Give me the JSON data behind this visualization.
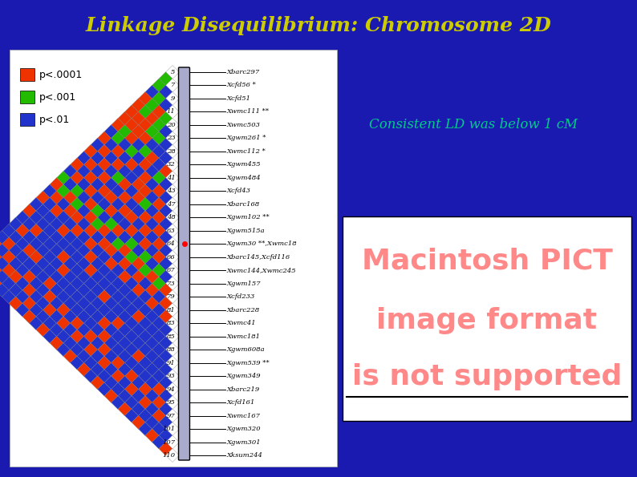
{
  "title": "Linkage Disequilibrium: Chromosome 2D",
  "title_color": "#CCCC00",
  "background_color": "#1A1AB0",
  "left_panel_bg": "#FFFFFF",
  "consistent_text": "Consistent LD was below 1 cM",
  "consistent_text_color": "#00CC88",
  "pict_lines": [
    "Macintosh PICT",
    "image format",
    "is not supported"
  ],
  "pict_color": "#FF8888",
  "legend_labels": [
    "p<.0001",
    "p<.001",
    "p<.01"
  ],
  "legend_colors": [
    "#EE3300",
    "#22BB00",
    "#2233CC"
  ],
  "marker_positions": [
    5,
    7,
    9,
    11,
    20,
    23,
    28,
    32,
    41,
    43,
    47,
    48,
    63,
    64,
    66,
    67,
    73,
    79,
    81,
    83,
    85,
    88,
    91,
    93,
    94,
    95,
    97,
    101,
    107,
    110
  ],
  "marker_names": [
    "Xbarc297",
    "Xcfd56 *",
    "Xcfd51",
    "Xwmc111 **",
    "Xwmc503",
    "Xgwm261 *",
    "Xwmc112 *",
    "Xgwm455",
    "Xgwm484",
    "Xcfd43",
    "Xbarc168",
    "Xgwm102 **",
    "Xgwm515a",
    "Xgwm30 **,Xwmc18",
    "Xbarc145,Xcfd116",
    "Xwmc144,Xwmc245",
    "Xgwm157",
    "Xcfd233",
    "Xbarc228",
    "Xwmc41",
    "Xwmc181",
    "Xgwm608a",
    "Xgwm539 **",
    "Xgwm349",
    "Xbarc219",
    "Xcfd161",
    "Xwmc167",
    "Xgwm320",
    "Xgwm301",
    "Xksum244"
  ],
  "underlined_markers": [
    13,
    14
  ],
  "ld_matrix_colors": [
    [
      0,
      0,
      0,
      0,
      0,
      0,
      0,
      0,
      0,
      0,
      0,
      0,
      0,
      0,
      0,
      0,
      0,
      0,
      0,
      0,
      0,
      0,
      0,
      0,
      0,
      0,
      0,
      0,
      0,
      0
    ],
    [
      2,
      0,
      0,
      0,
      0,
      0,
      0,
      0,
      0,
      0,
      0,
      0,
      0,
      0,
      0,
      0,
      0,
      0,
      0,
      0,
      0,
      0,
      0,
      0,
      0,
      0,
      0,
      0,
      0,
      0
    ],
    [
      2,
      1,
      0,
      0,
      0,
      0,
      0,
      0,
      0,
      0,
      0,
      0,
      0,
      0,
      0,
      0,
      0,
      0,
      0,
      0,
      0,
      0,
      0,
      0,
      0,
      0,
      0,
      0,
      0,
      0
    ],
    [
      1,
      2,
      1,
      0,
      0,
      0,
      0,
      0,
      0,
      0,
      0,
      0,
      0,
      0,
      0,
      0,
      0,
      0,
      0,
      0,
      0,
      0,
      0,
      0,
      0,
      0,
      0,
      0,
      0,
      0
    ],
    [
      3,
      2,
      3,
      2,
      0,
      0,
      0,
      0,
      0,
      0,
      0,
      0,
      0,
      0,
      0,
      0,
      0,
      0,
      0,
      0,
      0,
      0,
      0,
      0,
      0,
      0,
      0,
      0,
      0,
      0
    ],
    [
      3,
      2,
      3,
      2,
      1,
      0,
      0,
      0,
      0,
      0,
      0,
      0,
      0,
      0,
      0,
      0,
      0,
      0,
      0,
      0,
      0,
      0,
      0,
      0,
      0,
      0,
      0,
      0,
      0,
      0
    ],
    [
      3,
      3,
      3,
      2,
      2,
      1,
      0,
      0,
      0,
      0,
      0,
      0,
      0,
      0,
      0,
      0,
      0,
      0,
      0,
      0,
      0,
      0,
      0,
      0,
      0,
      0,
      0,
      0,
      0,
      0
    ],
    [
      3,
      3,
      3,
      3,
      1,
      1,
      1,
      0,
      0,
      0,
      0,
      0,
      0,
      0,
      0,
      0,
      0,
      0,
      0,
      0,
      0,
      0,
      0,
      0,
      0,
      0,
      0,
      0,
      0,
      0
    ],
    [
      3,
      2,
      3,
      1,
      2,
      3,
      1,
      3,
      0,
      0,
      0,
      0,
      0,
      0,
      0,
      0,
      0,
      0,
      0,
      0,
      0,
      0,
      0,
      0,
      0,
      0,
      0,
      0,
      0,
      0
    ],
    [
      1,
      2,
      1,
      2,
      1,
      3,
      1,
      2,
      1,
      0,
      0,
      0,
      0,
      0,
      0,
      0,
      0,
      0,
      0,
      0,
      0,
      0,
      0,
      0,
      0,
      0,
      0,
      0,
      0,
      0
    ],
    [
      3,
      1,
      3,
      1,
      3,
      1,
      3,
      1,
      3,
      1,
      0,
      0,
      0,
      0,
      0,
      0,
      0,
      0,
      0,
      0,
      0,
      0,
      0,
      0,
      0,
      0,
      0,
      0,
      0,
      0
    ],
    [
      1,
      3,
      1,
      3,
      1,
      1,
      3,
      3,
      1,
      3,
      1,
      0,
      0,
      0,
      0,
      0,
      0,
      0,
      0,
      0,
      0,
      0,
      0,
      0,
      0,
      0,
      0,
      0,
      0,
      0
    ],
    [
      3,
      1,
      3,
      1,
      2,
      3,
      1,
      3,
      2,
      1,
      3,
      1,
      0,
      0,
      0,
      0,
      0,
      0,
      0,
      0,
      0,
      0,
      0,
      0,
      0,
      0,
      0,
      0,
      0,
      0
    ],
    [
      1,
      3,
      1,
      3,
      1,
      1,
      3,
      1,
      1,
      3,
      1,
      3,
      1,
      0,
      0,
      0,
      0,
      0,
      0,
      0,
      0,
      0,
      0,
      0,
      0,
      0,
      0,
      0,
      0,
      0
    ],
    [
      3,
      1,
      3,
      1,
      3,
      3,
      1,
      3,
      3,
      1,
      3,
      1,
      3,
      1,
      0,
      0,
      0,
      0,
      0,
      0,
      0,
      0,
      0,
      0,
      0,
      0,
      0,
      0,
      0,
      0
    ],
    [
      1,
      3,
      1,
      3,
      1,
      1,
      3,
      1,
      1,
      3,
      1,
      3,
      1,
      3,
      1,
      0,
      0,
      0,
      0,
      0,
      0,
      0,
      0,
      0,
      0,
      0,
      0,
      0,
      0,
      0
    ],
    [
      2,
      1,
      2,
      1,
      3,
      2,
      1,
      2,
      3,
      1,
      2,
      1,
      2,
      1,
      2,
      1,
      0,
      0,
      0,
      0,
      0,
      0,
      0,
      0,
      0,
      0,
      0,
      0,
      0,
      0
    ],
    [
      3,
      2,
      3,
      2,
      1,
      3,
      2,
      3,
      1,
      2,
      3,
      2,
      3,
      2,
      3,
      2,
      3,
      0,
      0,
      0,
      0,
      0,
      0,
      0,
      0,
      0,
      0,
      0,
      0,
      0
    ],
    [
      1,
      3,
      1,
      3,
      3,
      1,
      3,
      1,
      3,
      3,
      1,
      3,
      1,
      3,
      1,
      3,
      1,
      3,
      0,
      0,
      0,
      0,
      0,
      0,
      0,
      0,
      0,
      0,
      0,
      0
    ],
    [
      3,
      1,
      3,
      1,
      1,
      3,
      1,
      3,
      1,
      1,
      3,
      1,
      3,
      1,
      3,
      1,
      3,
      1,
      3,
      0,
      0,
      0,
      0,
      0,
      0,
      0,
      0,
      0,
      0,
      0
    ],
    [
      1,
      1,
      1,
      1,
      3,
      1,
      1,
      1,
      3,
      1,
      1,
      1,
      1,
      1,
      1,
      1,
      1,
      1,
      1,
      1,
      0,
      0,
      0,
      0,
      0,
      0,
      0,
      0,
      0,
      0
    ],
    [
      3,
      1,
      1,
      1,
      1,
      1,
      1,
      1,
      1,
      3,
      1,
      1,
      1,
      1,
      1,
      1,
      3,
      1,
      1,
      1,
      1,
      0,
      0,
      0,
      0,
      0,
      0,
      0,
      0,
      0
    ],
    [
      1,
      1,
      3,
      1,
      1,
      1,
      3,
      1,
      1,
      1,
      1,
      1,
      3,
      1,
      1,
      1,
      1,
      1,
      1,
      1,
      1,
      1,
      0,
      0,
      0,
      0,
      0,
      0,
      0,
      0
    ],
    [
      1,
      3,
      1,
      1,
      1,
      1,
      1,
      3,
      1,
      1,
      1,
      1,
      1,
      1,
      1,
      3,
      1,
      1,
      1,
      1,
      1,
      1,
      1,
      0,
      0,
      0,
      0,
      0,
      0,
      0
    ],
    [
      1,
      1,
      1,
      3,
      3,
      1,
      1,
      1,
      1,
      1,
      1,
      1,
      1,
      1,
      3,
      1,
      1,
      1,
      1,
      3,
      1,
      1,
      1,
      1,
      0,
      0,
      0,
      0,
      0,
      0
    ],
    [
      1,
      3,
      1,
      1,
      1,
      1,
      1,
      3,
      1,
      1,
      1,
      1,
      1,
      1,
      1,
      3,
      1,
      1,
      1,
      1,
      1,
      1,
      1,
      3,
      1,
      0,
      0,
      0,
      0,
      0
    ],
    [
      3,
      1,
      3,
      1,
      1,
      3,
      1,
      1,
      3,
      1,
      3,
      1,
      3,
      1,
      3,
      1,
      3,
      1,
      3,
      1,
      3,
      1,
      3,
      1,
      3,
      1,
      0,
      0,
      0,
      0
    ],
    [
      1,
      3,
      1,
      3,
      3,
      1,
      3,
      1,
      1,
      3,
      1,
      3,
      1,
      3,
      1,
      3,
      1,
      3,
      1,
      3,
      1,
      3,
      1,
      3,
      1,
      3,
      1,
      0,
      0,
      0
    ],
    [
      1,
      1,
      3,
      1,
      1,
      1,
      1,
      3,
      1,
      1,
      1,
      1,
      1,
      1,
      1,
      1,
      1,
      1,
      1,
      1,
      1,
      1,
      1,
      1,
      1,
      1,
      1,
      1,
      0,
      0
    ],
    [
      1,
      3,
      1,
      3,
      1,
      1,
      3,
      1,
      3,
      1,
      3,
      1,
      3,
      1,
      3,
      1,
      3,
      1,
      3,
      1,
      3,
      1,
      3,
      1,
      3,
      1,
      3,
      1,
      3,
      0
    ]
  ],
  "figsize": [
    7.94,
    5.95
  ],
  "dpi": 100
}
